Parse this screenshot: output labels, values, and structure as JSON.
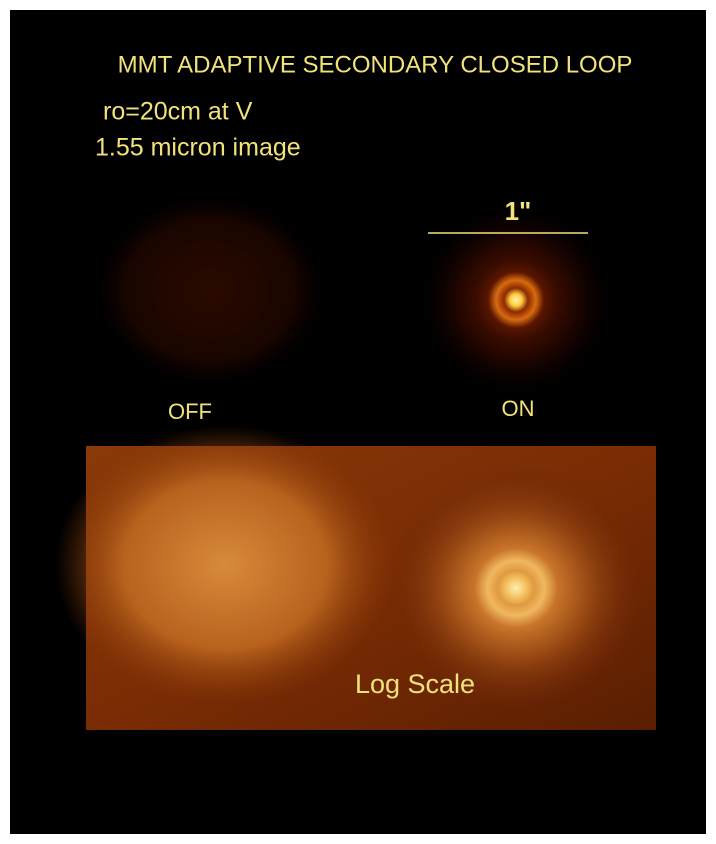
{
  "title": "MMT ADAPTIVE SECONDARY CLOSED LOOP",
  "conditions": [
    "ro=20cm at V",
    "1.55 micron image"
  ],
  "scale_bar_label": "1\"",
  "panels": {
    "off_label": "OFF",
    "on_label": "ON"
  },
  "log_panel_label": "Log Scale"
}
